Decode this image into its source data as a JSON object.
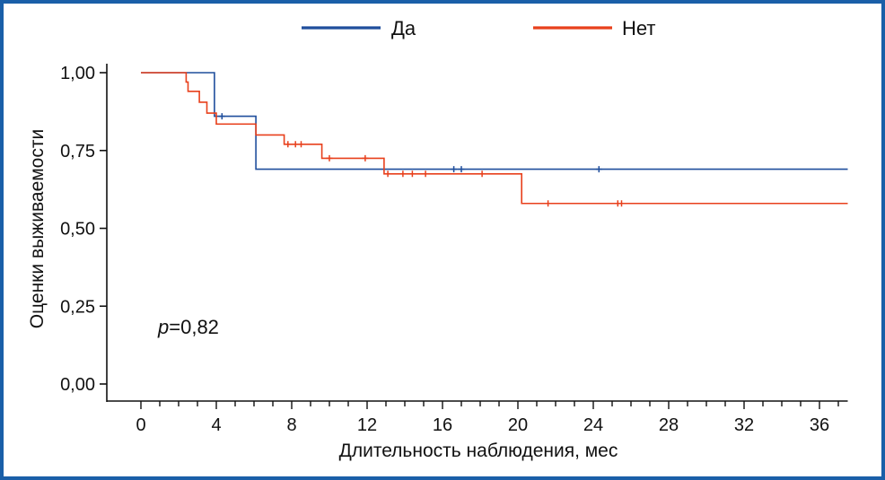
{
  "chart_data": {
    "type": "line",
    "title": "",
    "xlabel": "Длительность наблюдения, мес",
    "ylabel": "Оценки выживаемости",
    "xlim": [
      -3.5,
      37.5
    ],
    "ylim": [
      0,
      1
    ],
    "x_ticks": [
      0,
      4,
      8,
      12,
      16,
      20,
      24,
      28,
      32,
      36
    ],
    "x_minor_step": 1,
    "y_ticks": [
      0,
      0.25,
      0.5,
      0.75,
      1.0
    ],
    "y_tick_labels": [
      "0,00",
      "0,25",
      "0,50",
      "0,75",
      "1,00"
    ],
    "grid": false,
    "legend_position": "top-center",
    "annotation": {
      "italic": "p",
      "rest": "=0,82"
    },
    "series": [
      {
        "name": "Да",
        "color": "#1f4e9c",
        "steps": [
          [
            0,
            1.0
          ],
          [
            3.9,
            0.86
          ],
          [
            6.1,
            0.69
          ],
          [
            37.5,
            0.69
          ]
        ],
        "censored": [
          [
            4.3,
            0.86
          ],
          [
            16.6,
            0.69
          ],
          [
            17.0,
            0.69
          ],
          [
            24.3,
            0.69
          ]
        ]
      },
      {
        "name": "Нет",
        "color": "#e8401c",
        "steps": [
          [
            0,
            1.0
          ],
          [
            2.4,
            0.97
          ],
          [
            2.5,
            0.94
          ],
          [
            3.1,
            0.905
          ],
          [
            3.5,
            0.87
          ],
          [
            4.0,
            0.835
          ],
          [
            6.1,
            0.8
          ],
          [
            7.6,
            0.77
          ],
          [
            9.6,
            0.725
          ],
          [
            12.9,
            0.675
          ],
          [
            20.2,
            0.58
          ],
          [
            37.5,
            0.58
          ]
        ],
        "censored": [
          [
            7.8,
            0.77
          ],
          [
            8.2,
            0.77
          ],
          [
            8.5,
            0.77
          ],
          [
            10.0,
            0.725
          ],
          [
            11.9,
            0.725
          ],
          [
            13.1,
            0.675
          ],
          [
            13.9,
            0.675
          ],
          [
            14.4,
            0.675
          ],
          [
            15.1,
            0.675
          ],
          [
            18.1,
            0.675
          ],
          [
            21.6,
            0.58
          ],
          [
            25.3,
            0.58
          ],
          [
            25.5,
            0.58
          ]
        ]
      }
    ]
  }
}
